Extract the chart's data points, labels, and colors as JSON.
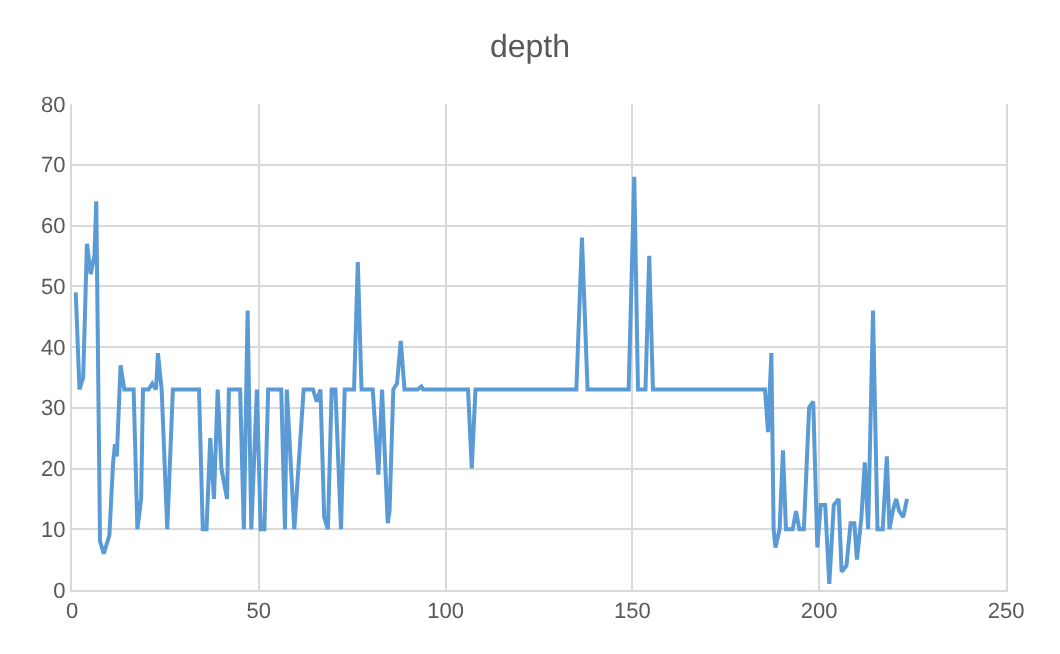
{
  "chart_data": {
    "type": "line",
    "title": "depth",
    "xlim": [
      0,
      250
    ],
    "xticks": [
      0,
      50,
      100,
      150,
      200,
      250
    ],
    "ylim": [
      0,
      80
    ],
    "yticks": [
      0,
      10,
      20,
      30,
      40,
      50,
      60,
      70,
      80
    ],
    "grid": true,
    "marker": "none",
    "line_style": "solid",
    "series": [
      {
        "color": "#5b9bd5",
        "x": [
          1,
          2,
          3,
          4,
          5,
          6,
          6.5,
          7.5,
          8.5,
          10,
          11,
          11.5,
          12,
          13,
          14,
          16.5,
          17.5,
          18.5,
          19,
          20.5,
          21.5,
          22.5,
          23,
          24,
          25.5,
          27,
          34,
          35,
          36,
          37,
          38,
          39,
          40,
          41.5,
          42,
          45,
          46,
          47,
          48,
          49.5,
          50.5,
          51.5,
          52.5,
          56,
          57,
          57.5,
          59.5,
          62,
          64.5,
          65.5,
          66.5,
          67.5,
          68.5,
          69.5,
          70.5,
          72,
          73,
          75.5,
          76.5,
          77.5,
          80.5,
          82,
          83,
          84.5,
          85,
          86,
          87,
          88,
          89,
          92.5,
          93.5,
          94,
          106,
          107,
          108,
          135,
          136.5,
          138,
          149,
          150.5,
          151.5,
          153.5,
          154.5,
          155.5,
          185.5,
          186.3,
          187.2,
          187.8,
          188.3,
          189.4,
          190.3,
          191.1,
          192.9,
          193.8,
          194.7,
          195.9,
          197.3,
          198.4,
          199.5,
          200.4,
          201.6,
          202.7,
          203.9,
          205.2,
          206,
          207.3,
          208.4,
          209.4,
          210.1,
          211.3,
          212.2,
          213.1,
          214.4,
          215.6,
          217,
          218.1,
          218.8,
          219.7,
          220.6,
          221.4,
          222.5,
          223.5
        ],
        "values": [
          49,
          33,
          35,
          57,
          52,
          55,
          64,
          8,
          6,
          9,
          21,
          24,
          22,
          37,
          33,
          33,
          10,
          15,
          33,
          33,
          34,
          33,
          39,
          33,
          10,
          33,
          33,
          10,
          10,
          25,
          15,
          33,
          20,
          15,
          33,
          33,
          10,
          46,
          10,
          33,
          10,
          10,
          33,
          33,
          10,
          33,
          10,
          33,
          33,
          31,
          33,
          12,
          10,
          33,
          33,
          10,
          33,
          33,
          54,
          33,
          33,
          19,
          33,
          11,
          13,
          33,
          34,
          41,
          33,
          33,
          33.5,
          33,
          33,
          20,
          33,
          33,
          58,
          33,
          33,
          68,
          33,
          33,
          55,
          33,
          33,
          26,
          39,
          10,
          7,
          10,
          23,
          10,
          10,
          13,
          10,
          10,
          30,
          31,
          7,
          14,
          14,
          1,
          14,
          15,
          3,
          4,
          11,
          11,
          5,
          12,
          21,
          10,
          46,
          10,
          10,
          22,
          10,
          13,
          15,
          13,
          12,
          15
        ]
      }
    ]
  }
}
